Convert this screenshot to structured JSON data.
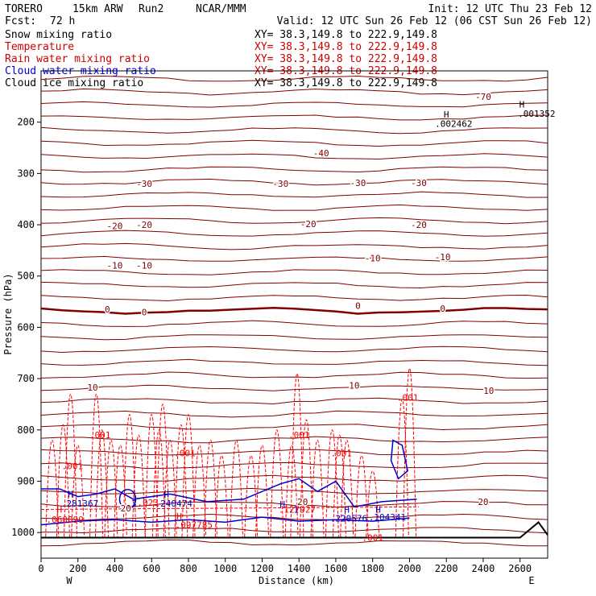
{
  "header": {
    "model": "TORERO",
    "resolution": "15km ARW",
    "run": "Run2",
    "center": "NCAR/MMM",
    "init": "Init: 12 UTC Thu 23 Feb 12",
    "fcst_label": "Fcst:",
    "fcst_value": "72 h",
    "valid": "Valid: 12 UTC Sun 26 Feb 12 (06 CST Sun 26 Feb 12)"
  },
  "legend": [
    {
      "label": "Snow mixing ratio",
      "xy": "XY=  38.3,149.8 to 222.9,149.8",
      "color": "#000000"
    },
    {
      "label": "Temperature",
      "xy": "XY=  38.3,149.8 to 222.9,149.8",
      "color": "#cc0000"
    },
    {
      "label": "Rain water mixing ratio",
      "xy": "XY=  38.3,149.8 to 222.9,149.8",
      "color": "#cc0000"
    },
    {
      "label": "Cloud water mixing ratio",
      "xy": "XY=  38.3,149.8 to 222.9,149.8",
      "color": "#0000cc"
    },
    {
      "label": "Cloud ice mixing ratio",
      "xy": "XY=  38.3,149.8 to 222.9,149.8",
      "color": "#000000"
    }
  ],
  "colors": {
    "temperature": "#800000",
    "temperature_zero": "#800000",
    "rain": "#ff0000",
    "cloud_water": "#0000cc",
    "snow": "#000000",
    "terrain": "#000000"
  },
  "chart_data": {
    "type": "contour",
    "xlabel": "Distance (km)",
    "ylabel": "Pressure (hPa)",
    "xlim": [
      0,
      2750
    ],
    "ylim": [
      1050,
      100
    ],
    "x_ticks": [
      "0",
      "200",
      "400",
      "600",
      "800",
      "1000",
      "1200",
      "1400",
      "1600",
      "1800",
      "2000",
      "2200",
      "2400",
      "2600"
    ],
    "y_ticks": [
      "200",
      "300",
      "400",
      "500",
      "600",
      "700",
      "800",
      "900",
      "1000"
    ],
    "x_start_label": "W",
    "x_end_label": "E",
    "temperature_labels": [
      {
        "text": "-70",
        "x": 2400,
        "p": 150
      },
      {
        "text": "-40",
        "x": 1520,
        "p": 260
      },
      {
        "text": "-30",
        "x": 560,
        "p": 320
      },
      {
        "text": "-30",
        "x": 1300,
        "p": 320
      },
      {
        "text": "-30",
        "x": 1720,
        "p": 318
      },
      {
        "text": "-30",
        "x": 2050,
        "p": 318
      },
      {
        "text": "-20",
        "x": 400,
        "p": 402
      },
      {
        "text": "-20",
        "x": 560,
        "p": 400
      },
      {
        "text": "-20",
        "x": 1450,
        "p": 398
      },
      {
        "text": "-20",
        "x": 2050,
        "p": 400
      },
      {
        "text": "-10",
        "x": 400,
        "p": 479
      },
      {
        "text": "-10",
        "x": 560,
        "p": 479
      },
      {
        "text": "-10",
        "x": 1800,
        "p": 465
      },
      {
        "text": "-10",
        "x": 2180,
        "p": 463
      },
      {
        "text": "0",
        "x": 360,
        "p": 565
      },
      {
        "text": "0",
        "x": 560,
        "p": 570
      },
      {
        "text": "0",
        "x": 1720,
        "p": 558
      },
      {
        "text": "0",
        "x": 2180,
        "p": 563
      },
      {
        "text": "10",
        "x": 280,
        "p": 717
      },
      {
        "text": "10",
        "x": 1700,
        "p": 713
      },
      {
        "text": "10",
        "x": 2430,
        "p": 723
      },
      {
        "text": "20",
        "x": 460,
        "p": 953
      },
      {
        "text": "20",
        "x": 1420,
        "p": 940
      },
      {
        "text": "20",
        "x": 2400,
        "p": 940
      }
    ],
    "rain_labels": [
      {
        "text": ".001",
        "x": 320,
        "p": 810
      },
      {
        "text": ".001",
        "x": 780,
        "p": 845
      },
      {
        "text": ".001",
        "x": 170,
        "p": 870
      },
      {
        "text": ".001",
        "x": 1400,
        "p": 810
      },
      {
        "text": ".001",
        "x": 1630,
        "p": 845
      },
      {
        "text": ".001",
        "x": 1990,
        "p": 737
      },
      {
        "text": ".001",
        "x": 1800,
        "p": 1010
      },
      {
        "text": ".023",
        "x": 580,
        "p": 942
      },
      {
        "text": ".060099",
        "x": 130,
        "p": 975
      },
      {
        "text": ".097785",
        "x": 830,
        "p": 985
      },
      {
        "text": ".127927",
        "x": 1390,
        "p": 955
      },
      {
        "text": "H",
        "x": 100,
        "p": 955
      },
      {
        "text": "H",
        "x": 750,
        "p": 968
      }
    ],
    "cloud_labels": [
      {
        "text": "H",
        "x": 160,
        "p": 925
      },
      {
        "text": "H",
        "x": 680,
        "p": 925
      },
      {
        "text": "H",
        "x": 1310,
        "p": 945
      },
      {
        "text": "H",
        "x": 1660,
        "p": 955
      },
      {
        "text": "H",
        "x": 1830,
        "p": 955
      },
      {
        "text": ".281367",
        "x": 210,
        "p": 943
      },
      {
        "text": ".3",
        "x": 490,
        "p": 943
      },
      {
        "text": ".240474",
        "x": 720,
        "p": 943
      },
      {
        "text": ".1",
        "x": 1370,
        "p": 955
      },
      {
        "text": ".220576",
        "x": 1670,
        "p": 972
      },
      {
        "text": ".104341",
        "x": 1880,
        "p": 970
      }
    ],
    "snow_labels": [
      {
        "text": "H",
        "x": 2200,
        "p": 185
      },
      {
        "text": ".002462",
        "x": 2240,
        "p": 203
      },
      {
        "text": "H",
        "x": 2610,
        "p": 165
      },
      {
        "text": ".001352",
        "x": 2690,
        "p": 183
      }
    ]
  }
}
